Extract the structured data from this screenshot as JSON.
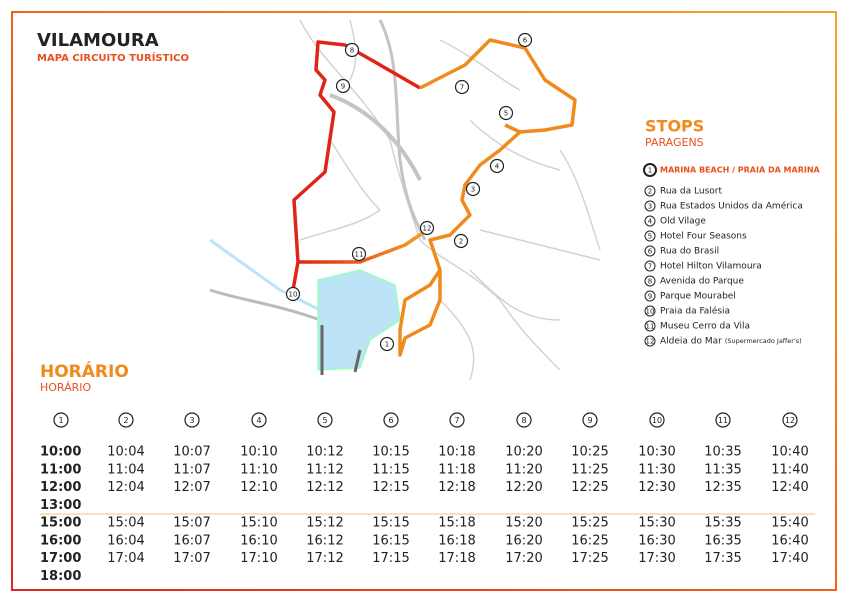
{
  "header": {
    "title": "VILAMOURA",
    "subtitle": "MAPA CIRCUITO TURÍSTICO"
  },
  "stops_heading": {
    "title": "STOPS",
    "subtitle": "PARAGENS"
  },
  "stops": [
    {
      "number": "1",
      "name": "MARINA BEACH / PRAIA DA MARINA"
    },
    {
      "number": "2",
      "name": "Rua da Lusort"
    },
    {
      "number": "3",
      "name": "Rua Estados Unidos da América"
    },
    {
      "number": "4",
      "name": "Old Vilage"
    },
    {
      "number": "5",
      "name": "Hotel Four Seasons"
    },
    {
      "number": "6",
      "name": "Rua do Brasil"
    },
    {
      "number": "7",
      "name": "Hotel Hilton Vilamoura"
    },
    {
      "number": "8",
      "name": "Avenida do Parque"
    },
    {
      "number": "9",
      "name": "Parque Mourabel"
    },
    {
      "number": "10",
      "name": "Praia da Falésia"
    },
    {
      "number": "11",
      "name": "Museu Cerro da Vila"
    },
    {
      "number": "12",
      "name": "Aldeia do Mar",
      "note": "(Supermercado Jaffer's)"
    }
  ],
  "schedule_heading": {
    "title": "HORÁRIO",
    "subtitle": "HORÁRIO"
  },
  "timetable": [
    {
      "morning": [
        "10:00",
        "11:00",
        "12:00",
        "13:00"
      ],
      "afternoon": [
        "15:00",
        "16:00",
        "17:00",
        "18:00"
      ]
    },
    {
      "morning": [
        "10:04",
        "11:04",
        "12:04"
      ],
      "afternoon": [
        "15:04",
        "16:04",
        "17:04"
      ]
    },
    {
      "morning": [
        "10:07",
        "11:07",
        "12:07"
      ],
      "afternoon": [
        "15:07",
        "16:07",
        "17:07"
      ]
    },
    {
      "morning": [
        "10:10",
        "11:10",
        "12:10"
      ],
      "afternoon": [
        "15:10",
        "16:10",
        "17:10"
      ]
    },
    {
      "morning": [
        "10:12",
        "11:12",
        "12:12"
      ],
      "afternoon": [
        "15:12",
        "16:12",
        "17:12"
      ]
    },
    {
      "morning": [
        "10:15",
        "11:15",
        "12:15"
      ],
      "afternoon": [
        "15:15",
        "16:15",
        "17:15"
      ]
    },
    {
      "morning": [
        "10:18",
        "11:18",
        "12:18"
      ],
      "afternoon": [
        "15:18",
        "16:18",
        "17:18"
      ]
    },
    {
      "morning": [
        "10:20",
        "11:20",
        "12:20"
      ],
      "afternoon": [
        "15:20",
        "16:20",
        "17:20"
      ]
    },
    {
      "morning": [
        "10:25",
        "11:25",
        "12:25"
      ],
      "afternoon": [
        "15:25",
        "16:25",
        "17:25"
      ]
    },
    {
      "morning": [
        "10:30",
        "11:30",
        "12:30"
      ],
      "afternoon": [
        "15:30",
        "16:30",
        "17:30"
      ]
    },
    {
      "morning": [
        "10:35",
        "11:35",
        "12:35"
      ],
      "afternoon": [
        "15:35",
        "16:35",
        "17:35"
      ]
    },
    {
      "morning": [
        "10:40",
        "11:40",
        "12:40"
      ],
      "afternoon": [
        "15:40",
        "16:40",
        "17:40"
      ]
    }
  ]
}
